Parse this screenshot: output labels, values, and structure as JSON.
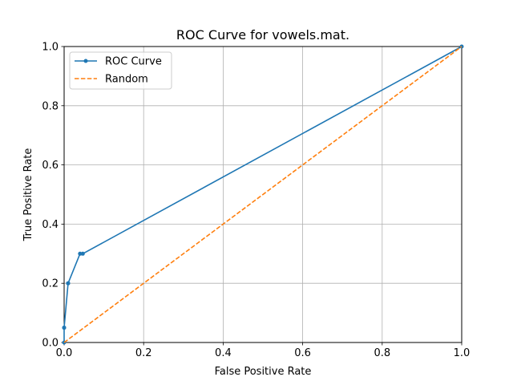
{
  "chart_data": {
    "type": "line",
    "title": "ROC Curve for vowels.mat.",
    "xlabel": "False Positive Rate",
    "ylabel": "True Positive Rate",
    "xlim": [
      0.0,
      1.0
    ],
    "ylim": [
      0.0,
      1.0
    ],
    "xticks": [
      "0.0",
      "0.2",
      "0.4",
      "0.6",
      "0.8",
      "1.0"
    ],
    "yticks": [
      "0.0",
      "0.2",
      "0.4",
      "0.6",
      "0.8",
      "1.0"
    ],
    "grid": true,
    "legend_position": "top-left",
    "series": [
      {
        "name": "ROC Curve",
        "color": "#1f77b4",
        "style": "solid",
        "marker": "circle",
        "x": [
          0.0,
          0.0,
          0.0,
          0.01,
          0.01,
          0.04,
          0.047,
          1.0
        ],
        "y": [
          0.0,
          0.05,
          0.05,
          0.2,
          0.2,
          0.3,
          0.3,
          1.0
        ]
      },
      {
        "name": "Random",
        "color": "#ff7f0e",
        "style": "dashed",
        "marker": "none",
        "x": [
          0.0,
          1.0
        ],
        "y": [
          0.0,
          1.0
        ]
      }
    ]
  }
}
